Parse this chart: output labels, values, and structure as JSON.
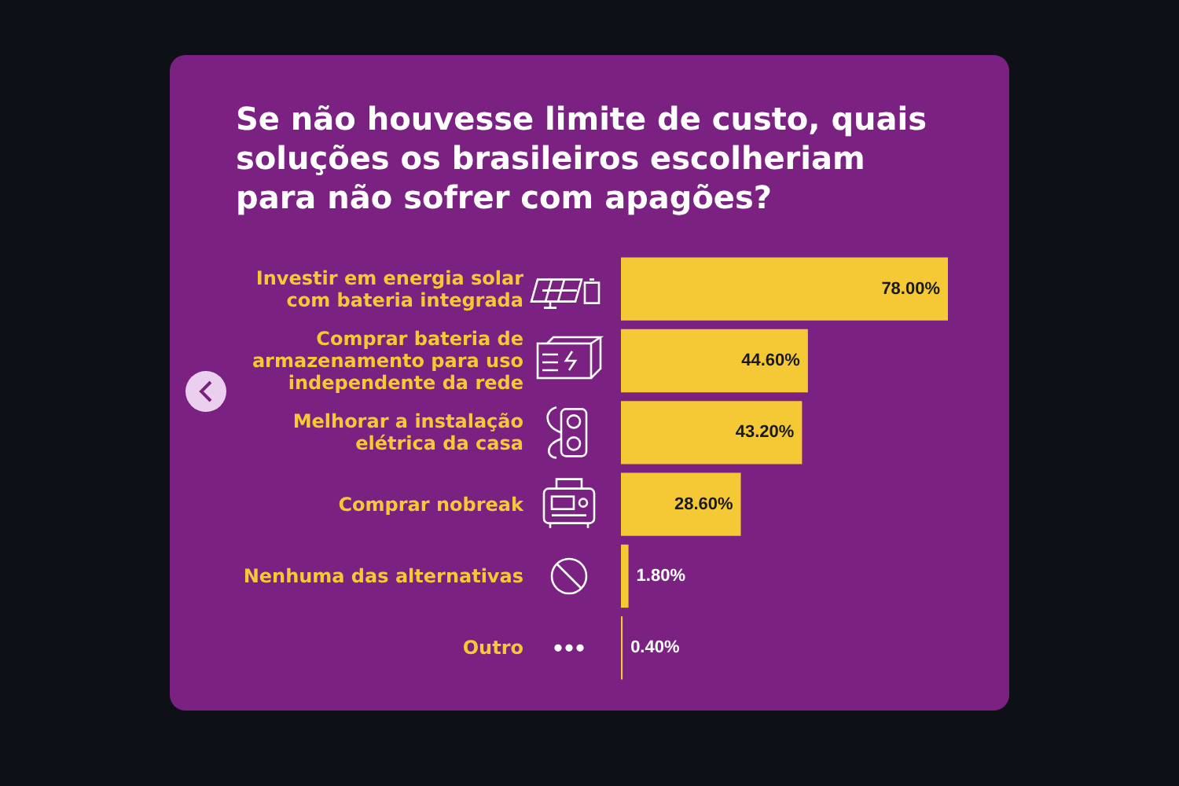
{
  "chart_data": {
    "type": "bar",
    "orientation": "horizontal",
    "title": "Se não houvesse limite de custo, quais\nsoluções os brasileiros escolheriam\npara não sofrer com apagões?",
    "categories": [
      "Investir em energia solar\ncom bateria integrada",
      "Comprar bateria de\narmazenamento para uso\nindependente da rede",
      "Melhorar a instalação\nelétrica da casa",
      "Comprar nobreak",
      "Nenhuma das alternativas",
      "Outro"
    ],
    "values": [
      78.0,
      44.6,
      43.2,
      28.6,
      1.8,
      0.4
    ],
    "value_labels": [
      "78.00%",
      "44.60%",
      "43.20%",
      "28.60%",
      "1.80%",
      "0.40%"
    ],
    "color": "#f5c935"
  }
}
